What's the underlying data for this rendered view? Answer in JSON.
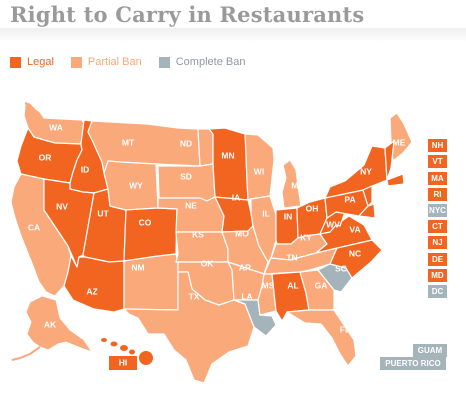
{
  "title": "Right to Carry in Restaurants",
  "colors": {
    "legal": "#f16521",
    "partial": "#f9a97a",
    "complete": "#a5b3bb",
    "title": "#9a9a9a"
  },
  "legend": [
    {
      "label": "Legal",
      "status": "legal"
    },
    {
      "label": "Partial Ban",
      "status": "partial"
    },
    {
      "label": "Complete Ban",
      "status": "complete"
    }
  ],
  "states": [
    {
      "abbr": "WA",
      "status": "partial"
    },
    {
      "abbr": "OR",
      "status": "legal"
    },
    {
      "abbr": "CA",
      "status": "partial"
    },
    {
      "abbr": "ID",
      "status": "legal"
    },
    {
      "abbr": "NV",
      "status": "legal"
    },
    {
      "abbr": "UT",
      "status": "legal"
    },
    {
      "abbr": "AZ",
      "status": "legal"
    },
    {
      "abbr": "MT",
      "status": "partial"
    },
    {
      "abbr": "WY",
      "status": "partial"
    },
    {
      "abbr": "CO",
      "status": "legal"
    },
    {
      "abbr": "NM",
      "status": "partial"
    },
    {
      "abbr": "ND",
      "status": "partial"
    },
    {
      "abbr": "SD",
      "status": "partial"
    },
    {
      "abbr": "NE",
      "status": "partial"
    },
    {
      "abbr": "KS",
      "status": "partial"
    },
    {
      "abbr": "OK",
      "status": "partial"
    },
    {
      "abbr": "TX",
      "status": "partial"
    },
    {
      "abbr": "MN",
      "status": "legal"
    },
    {
      "abbr": "IA",
      "status": "legal"
    },
    {
      "abbr": "MO",
      "status": "partial"
    },
    {
      "abbr": "AR",
      "status": "partial"
    },
    {
      "abbr": "LA",
      "status": "complete"
    },
    {
      "abbr": "WI",
      "status": "partial"
    },
    {
      "abbr": "IL",
      "status": "partial"
    },
    {
      "abbr": "MI",
      "status": "partial"
    },
    {
      "abbr": "IN",
      "status": "legal"
    },
    {
      "abbr": "OH",
      "status": "legal"
    },
    {
      "abbr": "KY",
      "status": "partial"
    },
    {
      "abbr": "TN",
      "status": "partial"
    },
    {
      "abbr": "MS",
      "status": "partial"
    },
    {
      "abbr": "AL",
      "status": "legal"
    },
    {
      "abbr": "GA",
      "status": "partial"
    },
    {
      "abbr": "FL",
      "status": "partial"
    },
    {
      "abbr": "SC",
      "status": "complete"
    },
    {
      "abbr": "NC",
      "status": "legal"
    },
    {
      "abbr": "VA",
      "status": "legal"
    },
    {
      "abbr": "WV",
      "status": "legal"
    },
    {
      "abbr": "PA",
      "status": "legal"
    },
    {
      "abbr": "NY",
      "status": "legal"
    },
    {
      "abbr": "ME",
      "status": "partial"
    },
    {
      "abbr": "AK",
      "status": "partial"
    },
    {
      "abbr": "HI",
      "status": "legal"
    }
  ],
  "boxes": [
    {
      "abbr": "NH",
      "status": "legal"
    },
    {
      "abbr": "VT",
      "status": "legal"
    },
    {
      "abbr": "MA",
      "status": "legal"
    },
    {
      "abbr": "RI",
      "status": "legal"
    },
    {
      "abbr": "NYC",
      "status": "complete"
    },
    {
      "abbr": "CT",
      "status": "legal"
    },
    {
      "abbr": "NJ",
      "status": "legal"
    },
    {
      "abbr": "DE",
      "status": "legal"
    },
    {
      "abbr": "MD",
      "status": "legal"
    },
    {
      "abbr": "DC",
      "status": "complete"
    },
    {
      "abbr": "GUAM",
      "status": "complete"
    },
    {
      "abbr": "PUERTO RICO",
      "status": "complete"
    }
  ]
}
